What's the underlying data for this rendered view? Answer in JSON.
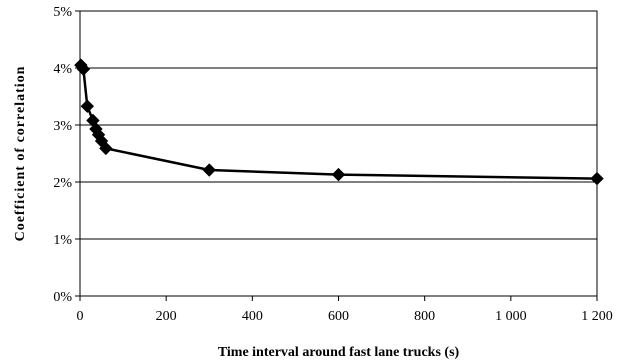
{
  "chart_data": {
    "type": "line",
    "title": "",
    "xlabel": "Time interval around fast lane trucks (s)",
    "ylabel": "Coefficient of correlation",
    "xlim": [
      0,
      1200
    ],
    "ylim": [
      0,
      0.05
    ],
    "x_ticks": [
      0,
      200,
      400,
      600,
      800,
      1000,
      1200
    ],
    "x_tick_labels": [
      "0",
      "200",
      "400",
      "600",
      "800",
      "1 000",
      "1 200"
    ],
    "y_ticks": [
      0,
      0.01,
      0.02,
      0.03,
      0.04,
      0.05
    ],
    "y_tick_labels": [
      "0%",
      "1%",
      "2%",
      "3%",
      "4%",
      "5%"
    ],
    "grid": "horizontal",
    "legend": "none",
    "marker": "diamond",
    "line_color": "#000000",
    "series": [
      {
        "x": [
          2,
          8,
          17,
          30,
          37,
          43,
          50,
          60,
          300,
          600,
          1200
        ],
        "y": [
          0.0405,
          0.0398,
          0.0333,
          0.0308,
          0.0293,
          0.0283,
          0.0272,
          0.0259,
          0.0221,
          0.0213,
          0.0206
        ]
      }
    ]
  }
}
